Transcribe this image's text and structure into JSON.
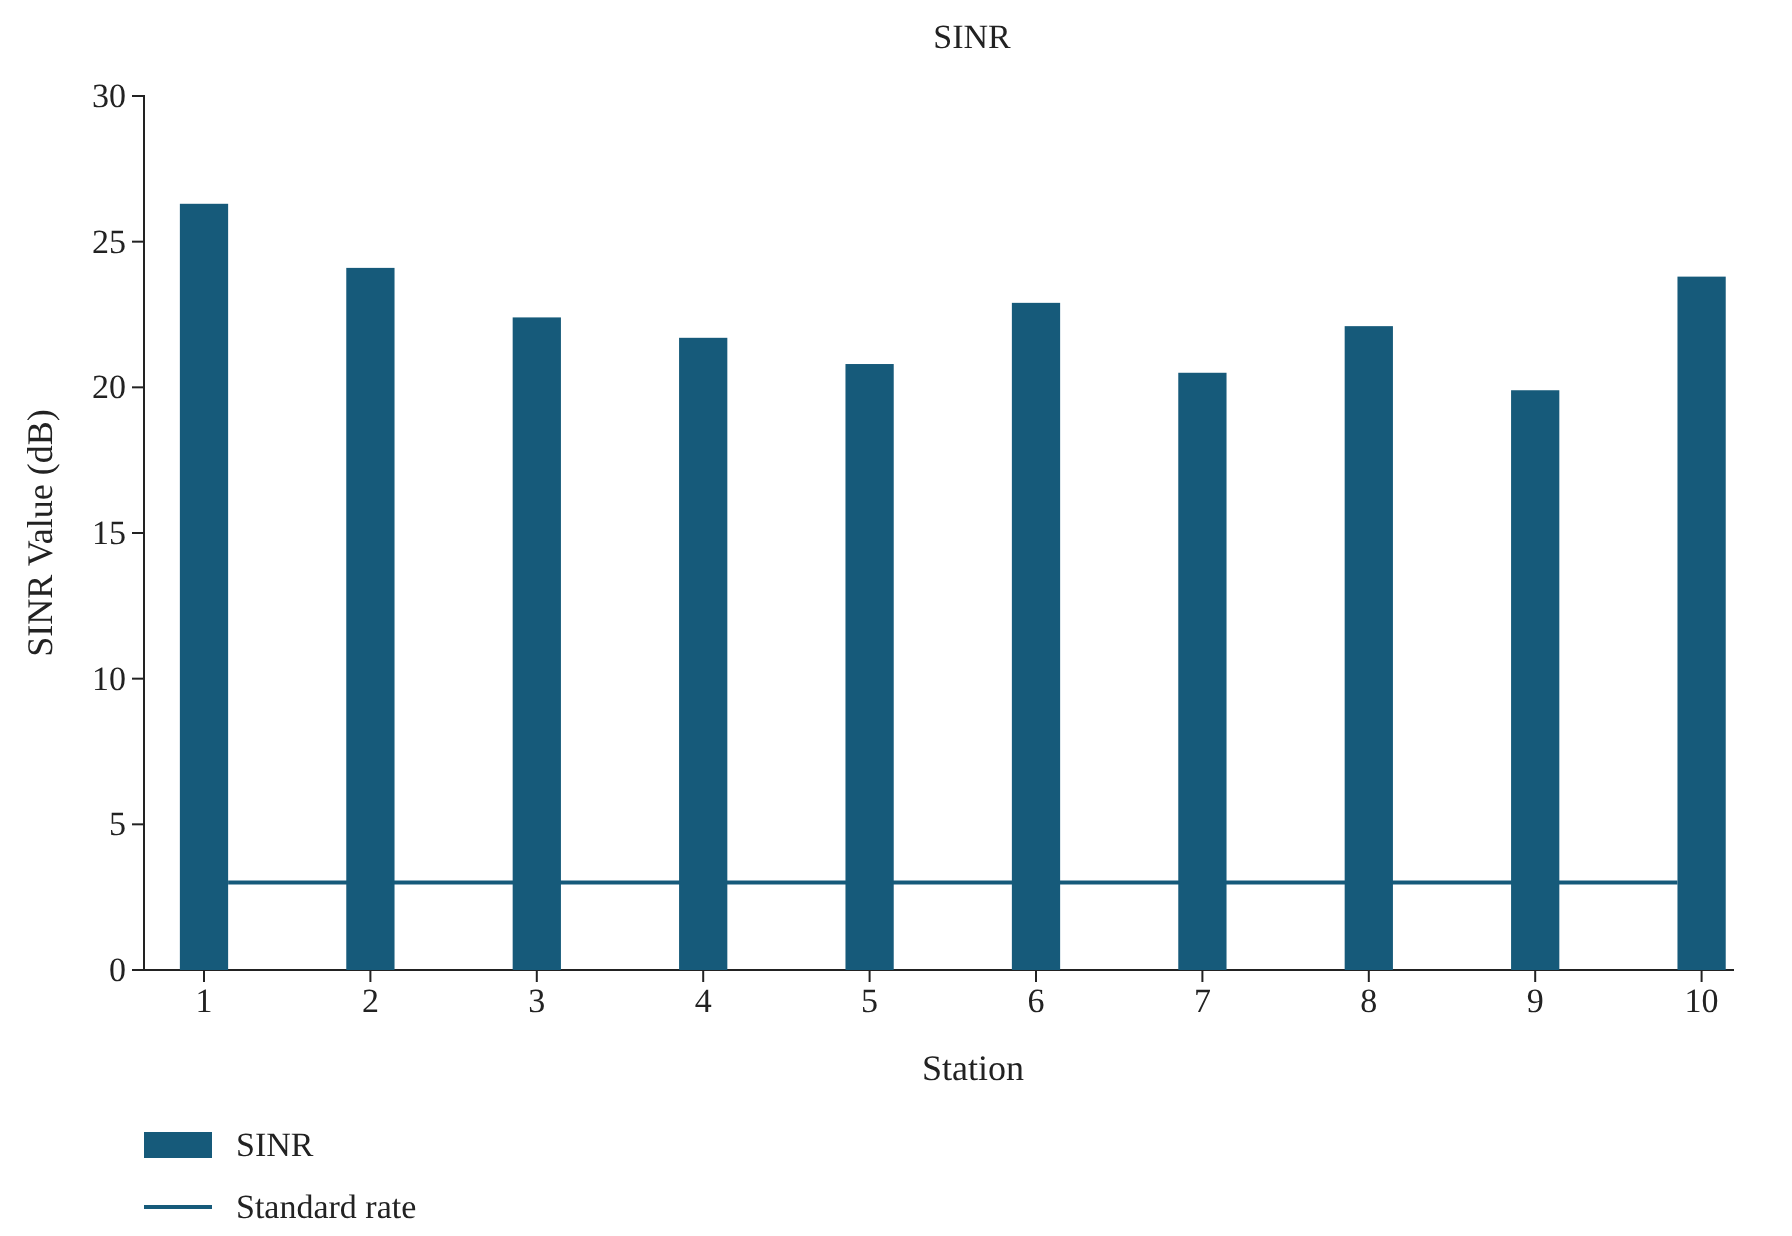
{
  "chart_data": {
    "type": "bar",
    "title": "SINR",
    "xlabel": "Station",
    "ylabel": "SINR Value (dB)",
    "categories": [
      "1",
      "2",
      "3",
      "4",
      "5",
      "6",
      "7",
      "8",
      "9",
      "10"
    ],
    "series": [
      {
        "name": "SINR",
        "color": "#165a7a",
        "values": [
          26.3,
          24.1,
          22.4,
          21.7,
          20.8,
          22.9,
          20.5,
          22.1,
          19.9,
          23.8
        ]
      }
    ],
    "ref_lines": [
      {
        "axis": "y",
        "value": 3,
        "label": "Standard rate",
        "color": "#165a7a",
        "line_style": "solid"
      }
    ],
    "ylim": [
      0,
      30
    ],
    "yticks": [
      0,
      5,
      10,
      15,
      20,
      25,
      30
    ],
    "grid": false,
    "legend": "bottom left"
  }
}
